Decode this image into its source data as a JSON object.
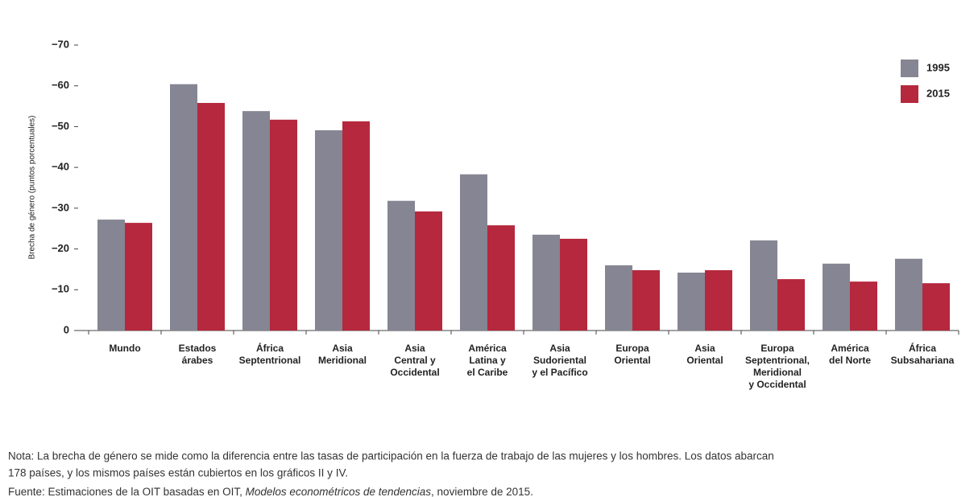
{
  "chart_data": {
    "type": "bar",
    "y_label": "Brecha de género (puntos porcentuales)",
    "categories": [
      [
        "Mundo"
      ],
      [
        "Estados",
        "árabes"
      ],
      [
        "África",
        "Septentrional"
      ],
      [
        "Asia",
        "Meridional"
      ],
      [
        "Asia",
        "Central y",
        "Occidental"
      ],
      [
        "América",
        "Latina y",
        "el Caribe"
      ],
      [
        "Asia",
        "Sudoriental",
        "y el Pacífico"
      ],
      [
        "Europa",
        "Oriental"
      ],
      [
        "Asia",
        "Oriental"
      ],
      [
        "Europa",
        "Septentrional,",
        "Meridional",
        "y Occidental"
      ],
      [
        "América",
        "del Norte"
      ],
      [
        "África",
        "Subsahariana"
      ]
    ],
    "series": [
      {
        "name": "1995",
        "color": "#858593",
        "values": [
          -27.2,
          -60.4,
          -53.8,
          -49.1,
          -31.8,
          -38.3,
          -23.5,
          -16.0,
          -14.2,
          -22.1,
          -16.4,
          -17.6
        ]
      },
      {
        "name": "2015",
        "color": "#b5283d",
        "values": [
          -26.4,
          -55.8,
          -51.7,
          -51.3,
          -29.2,
          -25.8,
          -22.5,
          -14.8,
          -14.8,
          -12.6,
          -12.0,
          -11.6
        ]
      }
    ],
    "ylim": [
      0,
      -70
    ],
    "yticks": [
      0,
      {
        "value": -10,
        "label": "−10"
      },
      {
        "value": -20,
        "label": "−20"
      },
      {
        "value": -30,
        "label": "−30"
      },
      {
        "value": -40,
        "label": "−40"
      },
      {
        "value": -50,
        "label": "−50"
      },
      {
        "value": -60,
        "label": "−60"
      },
      {
        "value": -70,
        "label": "−70"
      }
    ],
    "legend": "top-right",
    "note": [
      "Nota: La brecha de género se mide como la diferencia entre las tasas de participación en la fuerza de trabajo de las mujeres y los hombres. Los datos abarcan",
      "178 países, y los mismos países están cubiertos en los gráficos II y IV."
    ],
    "source": {
      "prefix": "Fuente: Estimaciones de la OIT basadas en OIT, ",
      "title": "Modelos econométricos de tendencias",
      "suffix": ", noviembre de 2015."
    }
  }
}
